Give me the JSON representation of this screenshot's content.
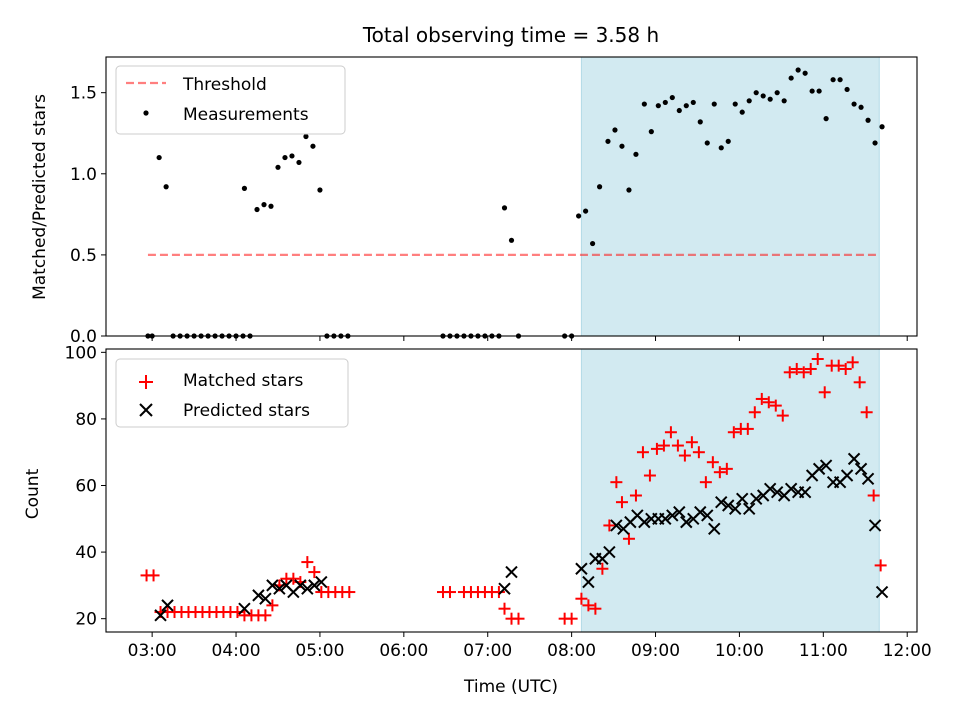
{
  "figure": {
    "title": "Total observing time = 3.58 h",
    "xlabel": "Time (UTC)"
  },
  "colors": {
    "shade": "#add8e6",
    "threshold": "#ff0000",
    "measurements": "#000000",
    "matched": "#ff0000",
    "predicted": "#000000"
  },
  "chart_data": [
    {
      "type": "scatter",
      "ylabel": "Matched/Predicted stars",
      "xlim": [
        "02:27",
        "12:07"
      ],
      "ylim": [
        0,
        1.72
      ],
      "xticks": [
        "03:00",
        "04:00",
        "05:00",
        "06:00",
        "07:00",
        "08:00",
        "09:00",
        "10:00",
        "11:00",
        "12:00"
      ],
      "yticks": [
        0.0,
        0.5,
        1.0,
        1.5
      ],
      "ytick_labels": [
        "0.0",
        "0.5",
        "1.0",
        "1.5"
      ],
      "shaded_interval": [
        "08:07",
        "11:40"
      ],
      "threshold": {
        "name": "Threshold",
        "value": 0.5,
        "x_range": [
          "02:57",
          "11:40"
        ]
      },
      "series": [
        {
          "name": "Measurements",
          "points": [
            [
              "02:57",
              0
            ],
            [
              "03:00",
              0
            ],
            [
              "03:05",
              1.1
            ],
            [
              "03:10",
              0.92
            ],
            [
              "03:15",
              0
            ],
            [
              "03:20",
              0
            ],
            [
              "03:25",
              0
            ],
            [
              "03:30",
              0
            ],
            [
              "03:35",
              0
            ],
            [
              "03:40",
              0
            ],
            [
              "03:45",
              0
            ],
            [
              "03:50",
              0
            ],
            [
              "03:55",
              0
            ],
            [
              "04:00",
              0
            ],
            [
              "04:05",
              0
            ],
            [
              "04:06",
              0.91
            ],
            [
              "04:10",
              0
            ],
            [
              "04:15",
              0.78
            ],
            [
              "04:20",
              0.81
            ],
            [
              "04:25",
              0.8
            ],
            [
              "04:30",
              1.04
            ],
            [
              "04:35",
              1.1
            ],
            [
              "04:40",
              1.11
            ],
            [
              "04:45",
              1.07
            ],
            [
              "04:50",
              1.23
            ],
            [
              "04:55",
              1.17
            ],
            [
              "05:00",
              0.9
            ],
            [
              "05:05",
              0
            ],
            [
              "05:10",
              0
            ],
            [
              "05:15",
              0
            ],
            [
              "05:20",
              0
            ],
            [
              "06:28",
              0
            ],
            [
              "06:33",
              0
            ],
            [
              "06:38",
              0
            ],
            [
              "06:43",
              0
            ],
            [
              "06:48",
              0
            ],
            [
              "06:53",
              0
            ],
            [
              "06:58",
              0
            ],
            [
              "07:03",
              0
            ],
            [
              "07:08",
              0
            ],
            [
              "07:12",
              0.79
            ],
            [
              "07:17",
              0.59
            ],
            [
              "07:22",
              0
            ],
            [
              "07:55",
              0
            ],
            [
              "08:00",
              0
            ],
            [
              "08:05",
              0.74
            ],
            [
              "08:10",
              0.77
            ],
            [
              "08:15",
              0.57
            ],
            [
              "08:20",
              0.92
            ],
            [
              "08:26",
              1.2
            ],
            [
              "08:31",
              1.27
            ],
            [
              "08:36",
              1.17
            ],
            [
              "08:41",
              0.9
            ],
            [
              "08:46",
              1.12
            ],
            [
              "08:52",
              1.43
            ],
            [
              "08:57",
              1.26
            ],
            [
              "09:02",
              1.42
            ],
            [
              "09:07",
              1.44
            ],
            [
              "09:12",
              1.47
            ],
            [
              "09:17",
              1.39
            ],
            [
              "09:22",
              1.42
            ],
            [
              "09:27",
              1.44
            ],
            [
              "09:32",
              1.32
            ],
            [
              "09:37",
              1.19
            ],
            [
              "09:42",
              1.43
            ],
            [
              "09:47",
              1.16
            ],
            [
              "09:52",
              1.2
            ],
            [
              "09:57",
              1.43
            ],
            [
              "10:02",
              1.38
            ],
            [
              "10:07",
              1.45
            ],
            [
              "10:12",
              1.5
            ],
            [
              "10:17",
              1.48
            ],
            [
              "10:22",
              1.46
            ],
            [
              "10:27",
              1.5
            ],
            [
              "10:32",
              1.45
            ],
            [
              "10:37",
              1.59
            ],
            [
              "10:42",
              1.64
            ],
            [
              "10:47",
              1.62
            ],
            [
              "10:52",
              1.51
            ],
            [
              "10:57",
              1.51
            ],
            [
              "11:02",
              1.34
            ],
            [
              "11:07",
              1.58
            ],
            [
              "11:12",
              1.58
            ],
            [
              "11:17",
              1.52
            ],
            [
              "11:22",
              1.43
            ],
            [
              "11:27",
              1.41
            ],
            [
              "11:32",
              1.33
            ],
            [
              "11:37",
              1.19
            ],
            [
              "11:42",
              1.29
            ]
          ]
        }
      ],
      "legend": {
        "position": "top-left",
        "entries": [
          "Threshold",
          "Measurements"
        ]
      }
    },
    {
      "type": "scatter",
      "ylabel": "Count",
      "xlim": [
        "02:27",
        "12:07"
      ],
      "ylim": [
        16,
        101
      ],
      "xticks": [
        "03:00",
        "04:00",
        "05:00",
        "06:00",
        "07:00",
        "08:00",
        "09:00",
        "10:00",
        "11:00",
        "12:00"
      ],
      "yticks": [
        20,
        40,
        60,
        80,
        100
      ],
      "ytick_labels": [
        "20",
        "40",
        "60",
        "80",
        "100"
      ],
      "shaded_interval": [
        "08:07",
        "11:40"
      ],
      "series": [
        {
          "name": "Matched stars",
          "marker": "plus",
          "points": [
            [
              "02:56",
              33
            ],
            [
              "03:01",
              33
            ],
            [
              "03:06",
              22
            ],
            [
              "03:11",
              22
            ],
            [
              "03:16",
              22
            ],
            [
              "03:21",
              22
            ],
            [
              "03:26",
              22
            ],
            [
              "03:31",
              22
            ],
            [
              "03:36",
              22
            ],
            [
              "03:41",
              22
            ],
            [
              "03:46",
              22
            ],
            [
              "03:51",
              22
            ],
            [
              "03:56",
              22
            ],
            [
              "04:01",
              22
            ],
            [
              "04:06",
              21
            ],
            [
              "04:11",
              21
            ],
            [
              "04:16",
              21
            ],
            [
              "04:21",
              21
            ],
            [
              "04:26",
              24
            ],
            [
              "04:31",
              30
            ],
            [
              "04:36",
              32
            ],
            [
              "04:41",
              32
            ],
            [
              "04:46",
              31
            ],
            [
              "04:51",
              37
            ],
            [
              "04:56",
              34
            ],
            [
              "05:01",
              28
            ],
            [
              "05:06",
              28
            ],
            [
              "05:11",
              28
            ],
            [
              "05:16",
              28
            ],
            [
              "05:21",
              28
            ],
            [
              "06:28",
              28
            ],
            [
              "06:33",
              28
            ],
            [
              "06:43",
              28
            ],
            [
              "06:48",
              28
            ],
            [
              "06:53",
              28
            ],
            [
              "06:58",
              28
            ],
            [
              "07:03",
              28
            ],
            [
              "07:08",
              28
            ],
            [
              "07:12",
              23
            ],
            [
              "07:17",
              20
            ],
            [
              "07:22",
              20
            ],
            [
              "07:55",
              20
            ],
            [
              "08:00",
              20
            ],
            [
              "08:07",
              26
            ],
            [
              "08:12",
              24
            ],
            [
              "08:17",
              23
            ],
            [
              "08:22",
              35
            ],
            [
              "08:27",
              48
            ],
            [
              "08:32",
              61
            ],
            [
              "08:36",
              55
            ],
            [
              "08:41",
              44
            ],
            [
              "08:46",
              57
            ],
            [
              "08:51",
              70
            ],
            [
              "08:56",
              63
            ],
            [
              "09:01",
              71
            ],
            [
              "09:06",
              72
            ],
            [
              "09:11",
              76
            ],
            [
              "09:16",
              72
            ],
            [
              "09:21",
              69
            ],
            [
              "09:26",
              73
            ],
            [
              "09:31",
              70
            ],
            [
              "09:36",
              61
            ],
            [
              "09:41",
              67
            ],
            [
              "09:46",
              64
            ],
            [
              "09:51",
              65
            ],
            [
              "09:56",
              76
            ],
            [
              "10:01",
              77
            ],
            [
              "10:06",
              77
            ],
            [
              "10:11",
              82
            ],
            [
              "10:16",
              86
            ],
            [
              "10:21",
              85
            ],
            [
              "10:26",
              84
            ],
            [
              "10:31",
              81
            ],
            [
              "10:36",
              94
            ],
            [
              "10:41",
              95
            ],
            [
              "10:46",
              94
            ],
            [
              "10:51",
              95
            ],
            [
              "10:56",
              98
            ],
            [
              "11:01",
              88
            ],
            [
              "11:06",
              96
            ],
            [
              "11:11",
              96
            ],
            [
              "11:16",
              95
            ],
            [
              "11:21",
              97
            ],
            [
              "11:26",
              91
            ],
            [
              "11:31",
              82
            ],
            [
              "11:36",
              57
            ],
            [
              "11:41",
              36
            ]
          ]
        },
        {
          "name": "Predicted stars",
          "marker": "x",
          "points": [
            [
              "03:06",
              21
            ],
            [
              "03:11",
              24
            ],
            [
              "04:06",
              23
            ],
            [
              "04:16",
              27
            ],
            [
              "04:21",
              26
            ],
            [
              "04:26",
              30
            ],
            [
              "04:31",
              29
            ],
            [
              "04:36",
              30
            ],
            [
              "04:41",
              28
            ],
            [
              "04:46",
              30
            ],
            [
              "04:51",
              29
            ],
            [
              "04:56",
              30
            ],
            [
              "05:01",
              31
            ],
            [
              "07:12",
              29
            ],
            [
              "07:17",
              34
            ],
            [
              "08:07",
              35
            ],
            [
              "08:12",
              31
            ],
            [
              "08:17",
              38
            ],
            [
              "08:22",
              38
            ],
            [
              "08:27",
              40
            ],
            [
              "08:32",
              48
            ],
            [
              "08:37",
              47
            ],
            [
              "08:42",
              49
            ],
            [
              "08:47",
              51
            ],
            [
              "08:52",
              49
            ],
            [
              "08:57",
              50
            ],
            [
              "09:02",
              50
            ],
            [
              "09:07",
              50
            ],
            [
              "09:12",
              51
            ],
            [
              "09:17",
              52
            ],
            [
              "09:22",
              49
            ],
            [
              "09:27",
              50
            ],
            [
              "09:32",
              52
            ],
            [
              "09:37",
              51
            ],
            [
              "09:42",
              47
            ],
            [
              "09:47",
              55
            ],
            [
              "09:52",
              54
            ],
            [
              "09:57",
              53
            ],
            [
              "10:02",
              56
            ],
            [
              "10:07",
              53
            ],
            [
              "10:12",
              56
            ],
            [
              "10:17",
              57
            ],
            [
              "10:22",
              59
            ],
            [
              "10:27",
              58
            ],
            [
              "10:32",
              57
            ],
            [
              "10:37",
              59
            ],
            [
              "10:42",
              58
            ],
            [
              "10:47",
              58
            ],
            [
              "10:52",
              63
            ],
            [
              "10:57",
              65
            ],
            [
              "11:02",
              66
            ],
            [
              "11:07",
              61
            ],
            [
              "11:12",
              61
            ],
            [
              "11:17",
              63
            ],
            [
              "11:22",
              68
            ],
            [
              "11:27",
              65
            ],
            [
              "11:32",
              62
            ],
            [
              "11:37",
              48
            ],
            [
              "11:42",
              28
            ]
          ]
        }
      ],
      "legend": {
        "position": "top-left",
        "entries": [
          "Matched stars",
          "Predicted stars"
        ]
      }
    }
  ]
}
